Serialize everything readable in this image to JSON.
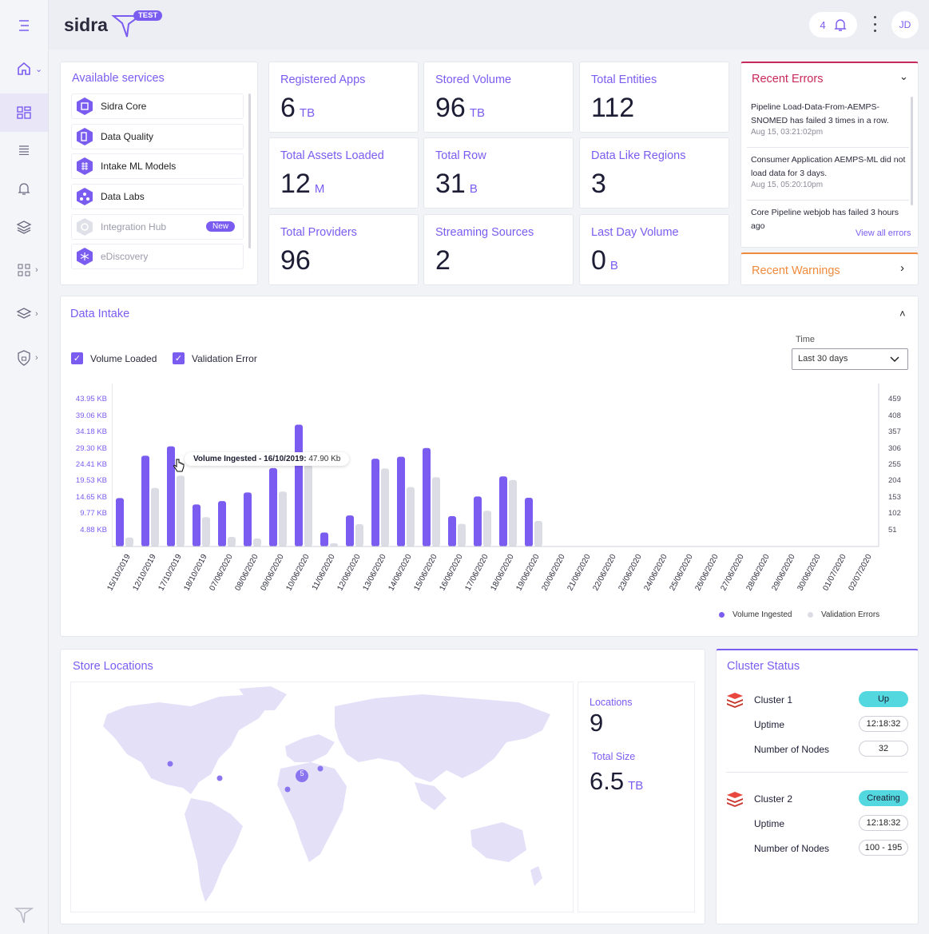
{
  "app": {
    "brand": "sidra",
    "env_badge": "TEST"
  },
  "header": {
    "notifications_count": "4",
    "user_initials": "JD"
  },
  "services": {
    "title": "Available services",
    "items": [
      {
        "label": "Sidra Core",
        "icon": "core-icon"
      },
      {
        "label": "Data Quality",
        "icon": "data-quality-icon"
      },
      {
        "label": "Intake ML Models",
        "icon": "ml-icon"
      },
      {
        "label": "Data Labs",
        "icon": "labs-icon"
      },
      {
        "label": "Integration Hub",
        "icon": "integration-icon",
        "badge": "New"
      },
      {
        "label": "eDiscovery",
        "icon": "ediscovery-icon"
      }
    ]
  },
  "stats": [
    {
      "label": "Registered Apps",
      "value": "6",
      "unit": "TB"
    },
    {
      "label": "Stored Volume",
      "value": "96",
      "unit": "TB"
    },
    {
      "label": "Total Entities",
      "value": "112",
      "unit": ""
    },
    {
      "label": "Total Assets Loaded",
      "value": "12",
      "unit": "M"
    },
    {
      "label": "Total Row",
      "value": "31",
      "unit": "B"
    },
    {
      "label": "Data Like Regions",
      "value": "3",
      "unit": ""
    },
    {
      "label": "Total Providers",
      "value": "96",
      "unit": ""
    },
    {
      "label": "Streaming Sources",
      "value": "2",
      "unit": ""
    },
    {
      "label": "Last Day Volume",
      "value": "0",
      "unit": "B"
    }
  ],
  "errors": {
    "title": "Recent Errors",
    "items": [
      {
        "text": "Pipeline Load-Data-From-AEMPS-SNOMED has failed 3 times in a row.",
        "time": "Aug 15, 03:21:02pm"
      },
      {
        "text": "Consumer Application AEMPS-ML did not load data for 3 days.",
        "time": "Aug 15, 05:20:10pm"
      },
      {
        "text": "Core Pipeline webjob has failed 3 hours ago",
        "time": ""
      }
    ],
    "view_all": "View all errors"
  },
  "warnings": {
    "title": "Recent Warnings"
  },
  "intake": {
    "title": "Data Intake",
    "check_volume": "Volume Loaded",
    "check_validation": "Validation Error",
    "time_label": "Time",
    "time_value": "Last 30 days",
    "tooltip_label": "Volume Ingested - 16/10/2019:",
    "tooltip_value": "47.90 Kb",
    "legend_volume": "Volume Ingested",
    "legend_validation": "Validation Errors"
  },
  "chart_data": {
    "type": "bar",
    "title": "Data Intake",
    "categories": [
      "15/10/2019",
      "12/10/2019",
      "17/10/2019",
      "18/10/2019",
      "07/06/2020",
      "08/06/2020",
      "09/06/2020",
      "10/06/2020",
      "11/06/2020",
      "12/06/2020",
      "13/06/2020",
      "14/06/2020",
      "15/06/2020",
      "16/06/2020",
      "17/06/2020",
      "18/06/2020",
      "19/06/2020",
      "20/06/2020",
      "21/06/2020",
      "22/06/2020",
      "23/06/2020",
      "24/06/2020",
      "25/06/2020",
      "26/06/2020",
      "27/06/2020",
      "28/06/2020",
      "29/06/2020",
      "30/06/2020",
      "01/07/2020",
      "02/07/2020"
    ],
    "y_left_ticks": [
      "4.88 KB",
      "9.77 KB",
      "14.65 KB",
      "19.53 KB",
      "24.41 KB",
      "29.30 KB",
      "34.18 KB",
      "39.06 KB",
      "43.95 KB"
    ],
    "y_right_ticks": [
      "51",
      "102",
      "153",
      "204",
      "255",
      "306",
      "357",
      "408",
      "459"
    ],
    "ylim_left_kb": [
      0,
      48.83
    ],
    "ylim_right": [
      0,
      510
    ],
    "series": [
      {
        "name": "Volume Ingested",
        "color": "#7b5cf0",
        "axis": "left",
        "values": [
          14.5,
          27.2,
          30.0,
          12.6,
          13.6,
          16.2,
          23.5,
          36.5,
          4.2,
          9.3,
          26.3,
          26.9,
          29.5,
          9.1,
          15.0,
          21.0,
          14.6,
          0,
          0,
          0,
          0,
          0,
          0,
          0,
          0,
          0,
          0,
          0,
          0,
          0
        ]
      },
      {
        "name": "Validation Errors",
        "color": "#dcdde4",
        "axis": "right",
        "values": [
          28,
          183,
          222,
          92,
          30,
          25,
          172,
          255,
          10,
          70,
          244,
          186,
          217,
          71,
          112,
          208,
          80,
          0,
          0,
          0,
          0,
          0,
          0,
          0,
          0,
          0,
          0,
          0,
          0,
          0
        ]
      }
    ],
    "grid": false
  },
  "locations": {
    "title": "Store Locations",
    "locations_label": "Locations",
    "locations_value": "9",
    "size_label": "Total Size",
    "size_value": "6.5",
    "size_unit": "TB",
    "cluster_marker": "5"
  },
  "clusters": {
    "title": "Cluster Status",
    "uptime_label": "Uptime",
    "nodes_label": "Number of Nodes",
    "items": [
      {
        "name": "Cluster 1",
        "status": "Up",
        "uptime": "12:18:32",
        "nodes": "32"
      },
      {
        "name": "Cluster 2",
        "status": "Creating",
        "uptime": "12:18:32",
        "nodes": "100 - 195"
      }
    ]
  },
  "colors": {
    "accent": "#7b5cf0",
    "error": "#c8285a",
    "warning": "#f08a3c",
    "status": "#54d8e0"
  }
}
